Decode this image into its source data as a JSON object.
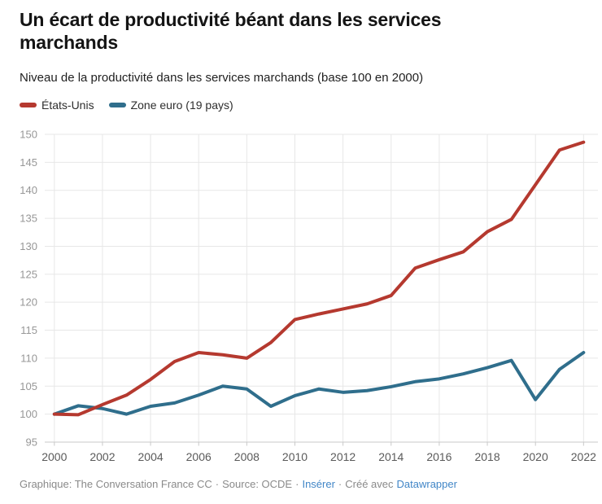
{
  "header": {
    "title": "Un écart de productivité béant dans les services marchands",
    "subtitle": "Niveau de la productivité dans les services marchands (base 100 en 2000)"
  },
  "chart_data": {
    "type": "line",
    "title": "Un écart de productivité béant dans les services marchands",
    "subtitle": "Niveau de la productivité dans les services marchands (base 100 en 2000)",
    "x": [
      2000,
      2001,
      2002,
      2003,
      2004,
      2005,
      2006,
      2007,
      2008,
      2009,
      2010,
      2011,
      2012,
      2013,
      2014,
      2015,
      2016,
      2017,
      2018,
      2019,
      2020,
      2021,
      2022
    ],
    "series": [
      {
        "name": "États-Unis",
        "color": "#b5392f",
        "values": [
          100,
          99.9,
          101.7,
          103.4,
          106.2,
          109.4,
          111,
          110.6,
          110,
          112.8,
          116.9,
          117.9,
          118.8,
          119.7,
          121.2,
          126.1,
          127.6,
          129,
          132.6,
          134.8,
          141,
          147.2,
          148.6
        ]
      },
      {
        "name": "Zone euro (19 pays)",
        "color": "#2f6e8c",
        "values": [
          100,
          101.5,
          101,
          100,
          101.4,
          102,
          103.4,
          105,
          104.5,
          101.4,
          103.3,
          104.5,
          103.9,
          104.2,
          104.9,
          105.8,
          106.3,
          107.2,
          108.3,
          109.6,
          102.6,
          108,
          111
        ]
      }
    ],
    "ylim": [
      95,
      150
    ],
    "yticks": [
      95,
      100,
      105,
      110,
      115,
      120,
      125,
      130,
      135,
      140,
      145,
      150
    ],
    "xticks": [
      2000,
      2002,
      2004,
      2006,
      2008,
      2010,
      2012,
      2014,
      2016,
      2018,
      2020,
      2022
    ],
    "grid": true,
    "legend_position": "top"
  },
  "footer": {
    "credit": "Graphique: The Conversation France CC",
    "separator": "·",
    "source": "Source: OCDE",
    "insert_link": "Insérer",
    "created_with": "Créé avec",
    "datawrapper_link": "Datawrapper"
  },
  "colors": {
    "grid": "#e7e7e7",
    "baseline": "#c9c9c9",
    "y_label": "#979797",
    "x_label": "#5a5a5a",
    "title": "#141414",
    "subtitle": "#1f1f1f",
    "legend_text": "#2e2e2e",
    "footer_text": "#8a8a8a",
    "link": "#4186c7",
    "background": "#ffffff"
  }
}
